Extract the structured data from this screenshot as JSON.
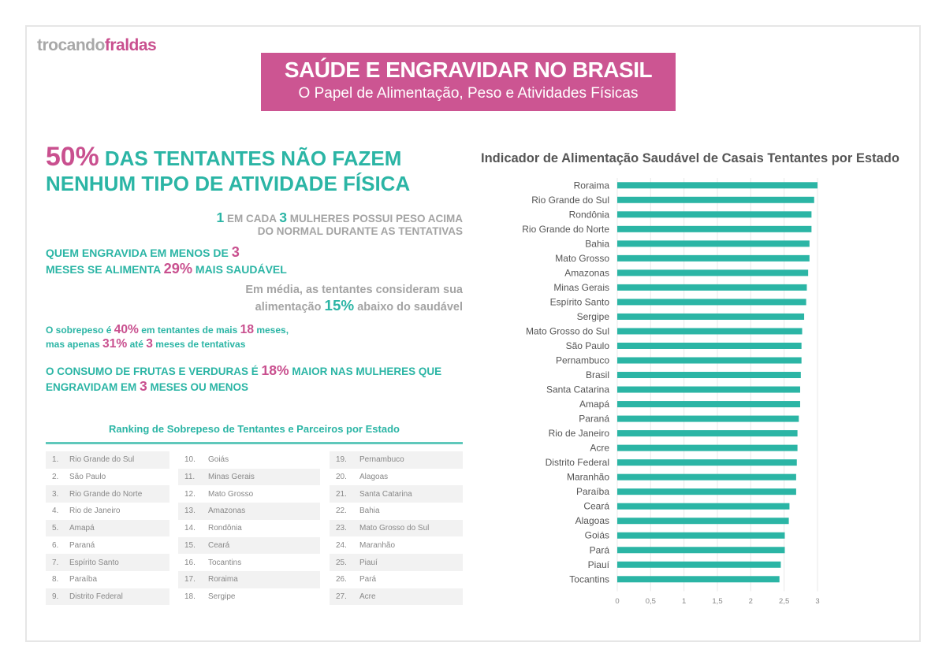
{
  "logo": {
    "part1": "trocando",
    "part2": "fraldas"
  },
  "header": {
    "title": "SAÚDE E ENGRAVIDAR NO BRASIL",
    "subtitle": "O Papel de Alimentação, Peso e Atividades Físicas"
  },
  "stats": [
    {
      "size": "big",
      "segments": [
        {
          "t": "50%",
          "c": "pk"
        },
        {
          "t": " DAS TENTANTES NÃO FAZEM",
          "c": "tl"
        },
        {
          "t": "\n",
          "c": ""
        },
        {
          "t": "NENHUM TIPO DE ATIVIDADE FÍSICA",
          "c": "tl"
        }
      ]
    },
    {
      "size": "s2",
      "segments": [
        {
          "t": "1",
          "c": "tl"
        },
        {
          "t": " EM CADA ",
          "c": "gr"
        },
        {
          "t": "3",
          "c": "tl"
        },
        {
          "t": " MULHERES POSSUI PESO ACIMA",
          "c": "gr"
        },
        {
          "t": "\n",
          "c": ""
        },
        {
          "t": "DO NORMAL DURANTE AS TENTATIVAS",
          "c": "gr"
        }
      ]
    },
    {
      "size": "s3",
      "segments": [
        {
          "t": "QUEM ENGRAVIDA EM MENOS DE ",
          "c": "tl"
        },
        {
          "t": "3",
          "c": "pk"
        },
        {
          "t": "\n",
          "c": ""
        },
        {
          "t": "MESES SE ALIMENTA ",
          "c": "tl"
        },
        {
          "t": "29%",
          "c": "pk"
        },
        {
          "t": " MAIS SAUDÁVEL",
          "c": "tl"
        }
      ]
    },
    {
      "size": "s4",
      "segments": [
        {
          "t": "Em média, as tentantes consideram sua",
          "c": "gr"
        },
        {
          "t": "\n",
          "c": ""
        },
        {
          "t": "alimentação ",
          "c": "gr"
        },
        {
          "t": "15%",
          "c": "tl"
        },
        {
          "t": " abaixo do saudável",
          "c": "gr"
        }
      ]
    },
    {
      "size": "s5",
      "segments": [
        {
          "t": "O sobrepeso é ",
          "c": "tl"
        },
        {
          "t": "40%",
          "c": "pk"
        },
        {
          "t": " em tentantes de mais ",
          "c": "tl"
        },
        {
          "t": "18",
          "c": "pk"
        },
        {
          "t": " meses,",
          "c": "tl"
        },
        {
          "t": "\n",
          "c": ""
        },
        {
          "t": "mas apenas ",
          "c": "tl"
        },
        {
          "t": "31%",
          "c": "pk"
        },
        {
          "t": " até ",
          "c": "tl"
        },
        {
          "t": "3",
          "c": "pk"
        },
        {
          "t": " meses de tentativas",
          "c": "tl"
        }
      ]
    },
    {
      "size": "s6",
      "segments": [
        {
          "t": "O CONSUMO DE FRUTAS E VERDURAS É ",
          "c": "tl"
        },
        {
          "t": "18%",
          "c": "pk"
        },
        {
          "t": " MAIOR NAS MULHERES QUE",
          "c": "tl"
        },
        {
          "t": "\n",
          "c": ""
        },
        {
          "t": "ENGRAVIDAM EM ",
          "c": "tl"
        },
        {
          "t": "3",
          "c": "pk"
        },
        {
          "t": " MESES OU MENOS",
          "c": "tl"
        }
      ]
    }
  ],
  "ranking": {
    "title": "Ranking de Sobrepeso de Tentantes e Parceiros por Estado",
    "items": [
      "Rio Grande do Sul",
      "São Paulo",
      "Rio Grande do Norte",
      "Rio de Janeiro",
      "Amapá",
      "Paraná",
      "Espírito Santo",
      "Paraíba",
      "Distrito Federal",
      "Goiás",
      "Minas Gerais",
      "Mato Grosso",
      "Amazonas",
      "Rondônia",
      "Ceará",
      "Tocantins",
      "Roraima",
      "Sergipe",
      "Pernambuco",
      "Alagoas",
      "Santa Catarina",
      "Bahia",
      "Mato Grosso do Sul",
      "Maranhão",
      "Piauí",
      "Pará",
      "Acre"
    ]
  },
  "colors": {
    "pink": "#cc5592",
    "teal": "#2bb5a5",
    "gray": "#a4a4a4"
  },
  "chart_data": {
    "type": "bar",
    "orientation": "horizontal",
    "title": "Indicador de Alimentação Saudável de Casais Tentantes por Estado",
    "categories": [
      "Roraima",
      "Rio Grande do Sul",
      "Rondônia",
      "Rio Grande do Norte",
      "Bahia",
      "Mato Grosso",
      "Amazonas",
      "Minas Gerais",
      "Espírito Santo",
      "Sergipe",
      "Mato Grosso do Sul",
      "São Paulo",
      "Pernambuco",
      "Brasil",
      "Santa Catarina",
      "Amapá",
      "Paraná",
      "Rio de Janeiro",
      "Acre",
      "Distrito Federal",
      "Maranhão",
      "Paraíba",
      "Ceará",
      "Alagoas",
      "Goiás",
      "Pará",
      "Piauí",
      "Tocantins"
    ],
    "values": [
      3.0,
      2.95,
      2.91,
      2.91,
      2.88,
      2.88,
      2.86,
      2.84,
      2.83,
      2.8,
      2.77,
      2.76,
      2.76,
      2.75,
      2.74,
      2.74,
      2.72,
      2.7,
      2.7,
      2.69,
      2.68,
      2.68,
      2.58,
      2.57,
      2.51,
      2.51,
      2.45,
      2.43
    ],
    "xlim": [
      0,
      3
    ],
    "xticks": [
      "0",
      "0,5",
      "1",
      "1,5",
      "2",
      "2,5",
      "3"
    ],
    "grid": true,
    "legend": "none",
    "color": "#2bb5a5"
  }
}
